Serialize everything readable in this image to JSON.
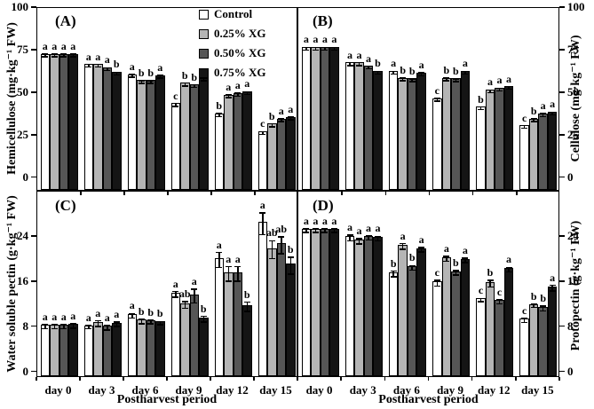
{
  "figure": {
    "background": "#ffffff",
    "x_axis_title": "Postharvest period",
    "categories": [
      "day 0",
      "day 3",
      "day 6",
      "day 9",
      "day 12",
      "day 15"
    ],
    "legend": {
      "position": "top-right-of-panel-A",
      "items": [
        {
          "label": "Control",
          "color": "#ffffff"
        },
        {
          "label": "0.25% XG",
          "color": "#b5b5b5"
        },
        {
          "label": "0.50% XG",
          "color": "#565656"
        },
        {
          "label": "0.75% XG",
          "color": "#151515"
        }
      ]
    }
  },
  "chart_data": [
    {
      "type": "bar",
      "panel_label": "(A)",
      "ylabel": "Hemicellulose (mg·kg⁻¹ FW)",
      "xlabel": "",
      "axis_side": "left",
      "ylim": [
        -8,
        100
      ],
      "yticks": [
        0,
        25,
        50,
        75,
        100
      ],
      "categories": [
        "day 0",
        "day 3",
        "day 6",
        "day 9",
        "day 12",
        "day 15"
      ],
      "series": [
        {
          "name": "Control",
          "values": [
            72,
            66,
            60,
            43,
            37,
            26.5
          ],
          "errors": [
            0.8,
            0.8,
            0.8,
            0.8,
            0.8,
            0.8
          ],
          "letters": [
            "a",
            "a",
            "a",
            "c",
            "b",
            "c"
          ]
        },
        {
          "name": "0.25% XG",
          "values": [
            72,
            66,
            56.5,
            55,
            48,
            31
          ],
          "errors": [
            0.8,
            0.8,
            0.8,
            0.8,
            0.8,
            0.8
          ],
          "letters": [
            "a",
            "a",
            "b",
            "b",
            "a",
            "b"
          ]
        },
        {
          "name": "0.50% XG",
          "values": [
            72,
            64,
            56.5,
            54,
            49,
            34
          ],
          "errors": [
            0.8,
            0.8,
            0.8,
            0.8,
            0.8,
            0.8
          ],
          "letters": [
            "a",
            "a",
            "b",
            "b",
            "a",
            "a"
          ]
        },
        {
          "name": "0.75% XG",
          "values": [
            72,
            61.5,
            59.5,
            58,
            50,
            35
          ],
          "errors": [
            0.8,
            0.8,
            0.8,
            0.8,
            0.8,
            0.8
          ],
          "letters": [
            "a",
            "b",
            "a",
            "a",
            "a",
            "a"
          ]
        }
      ]
    },
    {
      "type": "bar",
      "panel_label": "(B)",
      "ylabel": "Cellulose (mg·kg⁻¹ FW)",
      "xlabel": "",
      "axis_side": "right",
      "ylim": [
        -8,
        100
      ],
      "yticks": [
        0,
        25,
        50,
        75,
        100
      ],
      "categories": [
        "day 0",
        "day 3",
        "day 6",
        "day 9",
        "day 12",
        "day 15"
      ],
      "series": [
        {
          "name": "Control",
          "values": [
            76,
            67,
            62,
            46,
            41,
            30
          ],
          "errors": [
            0.8,
            0.8,
            0.8,
            0.8,
            0.8,
            0.8
          ],
          "letters": [
            "a",
            "a",
            "a",
            "c",
            "b",
            "c"
          ]
        },
        {
          "name": "0.25% XG",
          "values": [
            76,
            67,
            58,
            58,
            51,
            34
          ],
          "errors": [
            0.8,
            0.8,
            0.8,
            0.8,
            0.8,
            0.8
          ],
          "letters": [
            "a",
            "a",
            "b",
            "b",
            "a",
            "b"
          ]
        },
        {
          "name": "0.50% XG",
          "values": [
            76,
            65,
            57.5,
            57.5,
            52,
            37
          ],
          "errors": [
            0.8,
            0.8,
            0.8,
            0.8,
            0.8,
            0.8
          ],
          "letters": [
            "a",
            "a",
            "b",
            "b",
            "a",
            "a"
          ]
        },
        {
          "name": "0.75% XG",
          "values": [
            76,
            62,
            61,
            62,
            53,
            38
          ],
          "errors": [
            0.8,
            0.8,
            0.8,
            0.8,
            0.8,
            0.8
          ],
          "letters": [
            "a",
            "b",
            "a",
            "a",
            "a",
            "a"
          ]
        }
      ]
    },
    {
      "type": "bar",
      "panel_label": "(C)",
      "ylabel": "Water soluble pectin (g·kg⁻¹ FW)",
      "xlabel": "Postharvest period",
      "axis_side": "left",
      "ylim": [
        -1,
        32
      ],
      "yticks": [
        0,
        8,
        16,
        24
      ],
      "categories": [
        "day 0",
        "day 3",
        "day 6",
        "day 9",
        "day 12",
        "day 15"
      ],
      "series": [
        {
          "name": "Control",
          "values": [
            8.1,
            8.0,
            10.0,
            13.8,
            19.9,
            26.3
          ],
          "errors": [
            0.4,
            0.3,
            0.4,
            0.5,
            1.3,
            1.9
          ],
          "letters": [
            "a",
            "a",
            "a",
            "a",
            "a",
            "a"
          ]
        },
        {
          "name": "0.25% XG",
          "values": [
            8.1,
            8.6,
            9.0,
            11.9,
            17.4,
            21.7
          ],
          "errors": [
            0.4,
            0.5,
            0.4,
            0.6,
            1.3,
            1.6
          ],
          "letters": [
            "a",
            "a",
            "b",
            "ab",
            "a",
            "ab"
          ]
        },
        {
          "name": "0.50% XG",
          "values": [
            8.1,
            7.9,
            8.9,
            13.5,
            17.4,
            22.5
          ],
          "errors": [
            0.4,
            0.4,
            0.3,
            1.2,
            1.3,
            1.5
          ],
          "letters": [
            "a",
            "a",
            "b",
            "a",
            "a",
            "ab"
          ]
        },
        {
          "name": "0.75% XG",
          "values": [
            8.2,
            8.5,
            8.7,
            9.4,
            11.6,
            18.9
          ],
          "errors": [
            0.4,
            0.4,
            0.3,
            0.5,
            0.8,
            1.5
          ],
          "letters": [
            "a",
            "a",
            "b",
            "b",
            "b",
            "b"
          ]
        }
      ]
    },
    {
      "type": "bar",
      "panel_label": "(D)",
      "ylabel": "Protopectin (g·kg⁻¹ FW)",
      "xlabel": "Postharvest period",
      "axis_side": "right",
      "ylim": [
        -1,
        32
      ],
      "yticks": [
        0,
        8,
        16,
        24
      ],
      "categories": [
        "day 0",
        "day 3",
        "day 6",
        "day 9",
        "day 12",
        "day 15"
      ],
      "series": [
        {
          "name": "Control",
          "values": [
            25.1,
            23.8,
            17.4,
            15.8,
            12.8,
            9.2
          ],
          "errors": [
            0.3,
            0.5,
            0.5,
            0.5,
            0.3,
            0.4
          ],
          "letters": [
            "a",
            "a",
            "b",
            "c",
            "c",
            "c"
          ]
        },
        {
          "name": "0.25% XG",
          "values": [
            25.1,
            23.2,
            22.3,
            20.1,
            15.7,
            11.8
          ],
          "errors": [
            0.3,
            0.5,
            0.5,
            0.4,
            0.6,
            0.3
          ],
          "letters": [
            "a",
            "a",
            "a",
            "a",
            "b",
            "b"
          ]
        },
        {
          "name": "0.50% XG",
          "values": [
            25.1,
            23.8,
            18.5,
            17.6,
            12.5,
            11.3
          ],
          "errors": [
            0.3,
            0.4,
            0.4,
            0.4,
            0.4,
            0.4
          ],
          "letters": [
            "a",
            "a",
            "b",
            "b",
            "c",
            "b"
          ]
        },
        {
          "name": "0.75% XG",
          "values": [
            25.1,
            23.7,
            21.7,
            19.8,
            18.2,
            14.9
          ],
          "errors": [
            0.3,
            0.4,
            0.4,
            0.4,
            0.4,
            0.5
          ],
          "letters": [
            "a",
            "a",
            "a",
            "a",
            "a",
            "a"
          ]
        }
      ]
    }
  ]
}
